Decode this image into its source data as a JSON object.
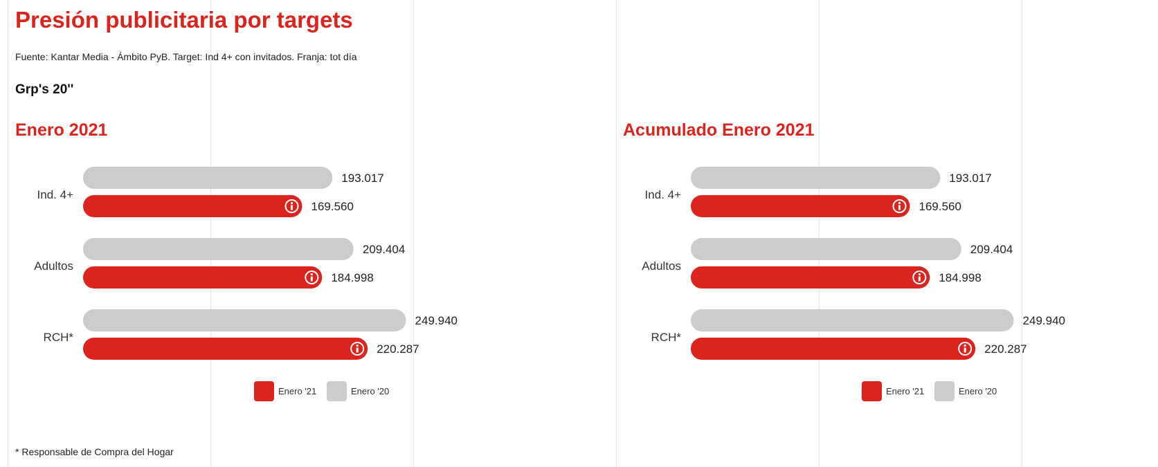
{
  "header": {
    "title": "Presión publicitaria por targets",
    "source": "Fuente: Kantar Media - Ámbito PyB. Target: Ind 4+ con invitados. Franja: tot día",
    "metric": "Grp's 20''"
  },
  "footnote": "* Responsable de Compra del Hogar",
  "colors": {
    "accent": "#dc241f",
    "series_current": "#dc241f",
    "series_previous": "#cccccc"
  },
  "info_icon": "info-icon",
  "chart_data": [
    {
      "type": "bar",
      "orientation": "horizontal",
      "title": "Enero 2021",
      "categories": [
        "Ind. 4+",
        "Adultos",
        "RCH*"
      ],
      "series": [
        {
          "name": "Enero '20",
          "values": [
            193017,
            209404,
            249940
          ],
          "labels": [
            "193.017",
            "209.404",
            "249.940"
          ]
        },
        {
          "name": "Enero '21",
          "values": [
            169560,
            184998,
            220287
          ],
          "labels": [
            "169.560",
            "184.998",
            "220.287"
          ]
        }
      ],
      "xlim": [
        0,
        300000
      ],
      "legend_order": [
        "Enero '21",
        "Enero '20"
      ],
      "legend": "bottom-center",
      "grid": true
    },
    {
      "type": "bar",
      "orientation": "horizontal",
      "title": "Acumulado Enero 2021",
      "categories": [
        "Ind. 4+",
        "Adultos",
        "RCH*"
      ],
      "series": [
        {
          "name": "Enero '20",
          "values": [
            193017,
            209404,
            249940
          ],
          "labels": [
            "193.017",
            "209.404",
            "249.940"
          ]
        },
        {
          "name": "Enero '21",
          "values": [
            169560,
            184998,
            220287
          ],
          "labels": [
            "169.560",
            "184.998",
            "220.287"
          ]
        }
      ],
      "xlim": [
        0,
        300000
      ],
      "legend_order": [
        "Enero '21",
        "Enero '20"
      ],
      "legend": "bottom-center",
      "grid": true
    }
  ]
}
